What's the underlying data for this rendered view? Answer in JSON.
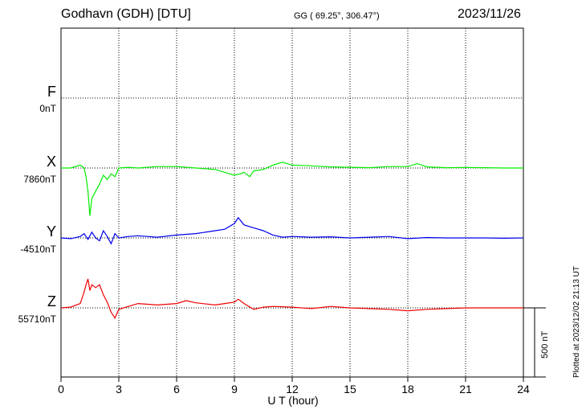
{
  "header": {
    "station": "Godhavn (GDH)  [DTU]",
    "coords": "GG ( 69.25°, 306.47°)",
    "date": "2023/11/26"
  },
  "plotted_note": "Plotted at 2023/12/02 21:13 UT",
  "scale_label": "500 nT",
  "chart_data": {
    "type": "line",
    "xlabel": "U T (hour)",
    "xlim": [
      0,
      24
    ],
    "xticks": [
      0,
      3,
      6,
      9,
      12,
      15,
      18,
      21,
      24
    ],
    "grid": true,
    "series": [
      {
        "name": "F",
        "baseline_label": "0nT",
        "color": "#f5a800",
        "x": [],
        "values": []
      },
      {
        "name": "X",
        "baseline_label": "7860nT",
        "color": "#00ee00",
        "x": [
          0,
          0.5,
          1.0,
          1.2,
          1.3,
          1.4,
          1.5,
          1.6,
          1.8,
          2.0,
          2.2,
          2.4,
          2.6,
          2.8,
          3.0,
          3.5,
          4.0,
          5.0,
          6.0,
          7.0,
          8.0,
          8.5,
          9.0,
          9.3,
          9.5,
          9.8,
          10.0,
          10.5,
          11.0,
          11.5,
          12.0,
          13.0,
          14.0,
          15.0,
          16.0,
          17.0,
          18.0,
          18.5,
          19.0,
          20.0,
          21.0,
          22.0,
          23.0,
          24.0
        ],
        "values": [
          7860,
          7860,
          7880,
          7860,
          7800,
          7700,
          7530,
          7650,
          7700,
          7750,
          7810,
          7780,
          7820,
          7800,
          7860,
          7865,
          7860,
          7870,
          7870,
          7860,
          7850,
          7830,
          7810,
          7820,
          7830,
          7800,
          7840,
          7850,
          7880,
          7900,
          7880,
          7875,
          7868,
          7865,
          7862,
          7870,
          7870,
          7890,
          7868,
          7862,
          7864,
          7862,
          7860,
          7860
        ]
      },
      {
        "name": "Y",
        "baseline_label": "-4510nT",
        "color": "#0000ee",
        "x": [
          0,
          0.5,
          1.0,
          1.2,
          1.4,
          1.6,
          1.8,
          2.0,
          2.2,
          2.4,
          2.6,
          2.8,
          3.0,
          3.5,
          4.0,
          5.0,
          6.0,
          7.0,
          8.0,
          8.5,
          9.0,
          9.2,
          9.5,
          10.0,
          10.5,
          11.0,
          11.5,
          12.0,
          13.0,
          14.0,
          15.0,
          16.0,
          17.0,
          18.0,
          19.0,
          20.0,
          21.0,
          22.0,
          23.0,
          24.0
        ],
        "values": [
          -4510,
          -4515,
          -4500,
          -4480,
          -4520,
          -4470,
          -4510,
          -4530,
          -4460,
          -4500,
          -4550,
          -4480,
          -4510,
          -4500,
          -4495,
          -4505,
          -4490,
          -4480,
          -4460,
          -4450,
          -4410,
          -4370,
          -4420,
          -4440,
          -4460,
          -4490,
          -4505,
          -4500,
          -4505,
          -4502,
          -4510,
          -4505,
          -4500,
          -4515,
          -4507,
          -4510,
          -4510,
          -4510,
          -4512,
          -4510
        ]
      },
      {
        "name": "Z",
        "baseline_label": "55710nT",
        "color": "#ee0000",
        "x": [
          0,
          0.5,
          1.0,
          1.2,
          1.3,
          1.4,
          1.5,
          1.6,
          1.8,
          2.0,
          2.2,
          2.4,
          2.6,
          2.8,
          3.0,
          3.5,
          4.0,
          5.0,
          6.0,
          6.5,
          7.0,
          8.0,
          8.5,
          9.0,
          9.2,
          9.5,
          10.0,
          10.5,
          11.0,
          12.0,
          13.0,
          14.0,
          15.0,
          16.0,
          17.0,
          18.0,
          19.0,
          20.0,
          21.0,
          22.0,
          23.0,
          24.0
        ],
        "values": [
          55710,
          55715,
          55740,
          55820,
          55870,
          55910,
          55830,
          55870,
          55850,
          55870,
          55800,
          55750,
          55680,
          55640,
          55700,
          55720,
          55740,
          55730,
          55740,
          55760,
          55745,
          55730,
          55740,
          55750,
          55770,
          55740,
          55700,
          55715,
          55720,
          55715,
          55705,
          55720,
          55710,
          55705,
          55700,
          55690,
          55700,
          55705,
          55710,
          55710,
          55710,
          55710
        ]
      }
    ]
  }
}
